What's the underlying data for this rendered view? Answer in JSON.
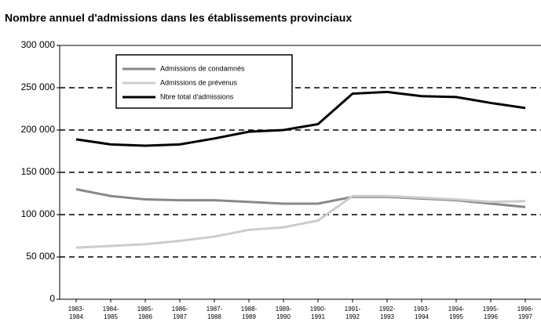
{
  "chart_data": {
    "type": "line",
    "title": "Nombre annuel d'admissions dans les établissements provinciaux",
    "categories": [
      "1983-\n1984",
      "1984-\n1985",
      "1985-\n1986",
      "1986-\n1987",
      "1987-\n1988",
      "1988-\n1989",
      "1989-\n1990",
      "1990-\n1991",
      "1991-\n1992",
      "1992-\n1993",
      "1993-\n1994",
      "1994-\n1995",
      "1995-\n1996",
      "1996-\n1997"
    ],
    "series": [
      {
        "name": "Admissions de condamnés",
        "color": "#888888",
        "values": [
          130000,
          122000,
          118000,
          117000,
          117000,
          115000,
          113000,
          113000,
          121000,
          121000,
          119000,
          117000,
          113000,
          109000
        ]
      },
      {
        "name": "Admissions de prévenus",
        "color": "#cccccc",
        "values": [
          61000,
          63000,
          65000,
          69000,
          74000,
          82000,
          85000,
          93000,
          122000,
          122000,
          120000,
          118000,
          115000,
          116000
        ]
      },
      {
        "name": "Nbre total d'admissions",
        "color": "#000000",
        "values": [
          189000,
          183000,
          181500,
          183000,
          190000,
          198000,
          200000,
          207000,
          243000,
          245000,
          240000,
          239000,
          232000,
          226000
        ]
      }
    ],
    "ylim": [
      0,
      300000
    ],
    "yticks": [
      0,
      {
        "value": 50000,
        "label": "50 000"
      },
      {
        "value": 100000,
        "label": "100 000"
      },
      {
        "value": 150000,
        "label": "150 000"
      },
      {
        "value": 200000,
        "label": "200 000"
      },
      {
        "value": 250000,
        "label": "250 000"
      },
      {
        "value": 300000,
        "label": "300 000"
      }
    ],
    "grid": true
  }
}
